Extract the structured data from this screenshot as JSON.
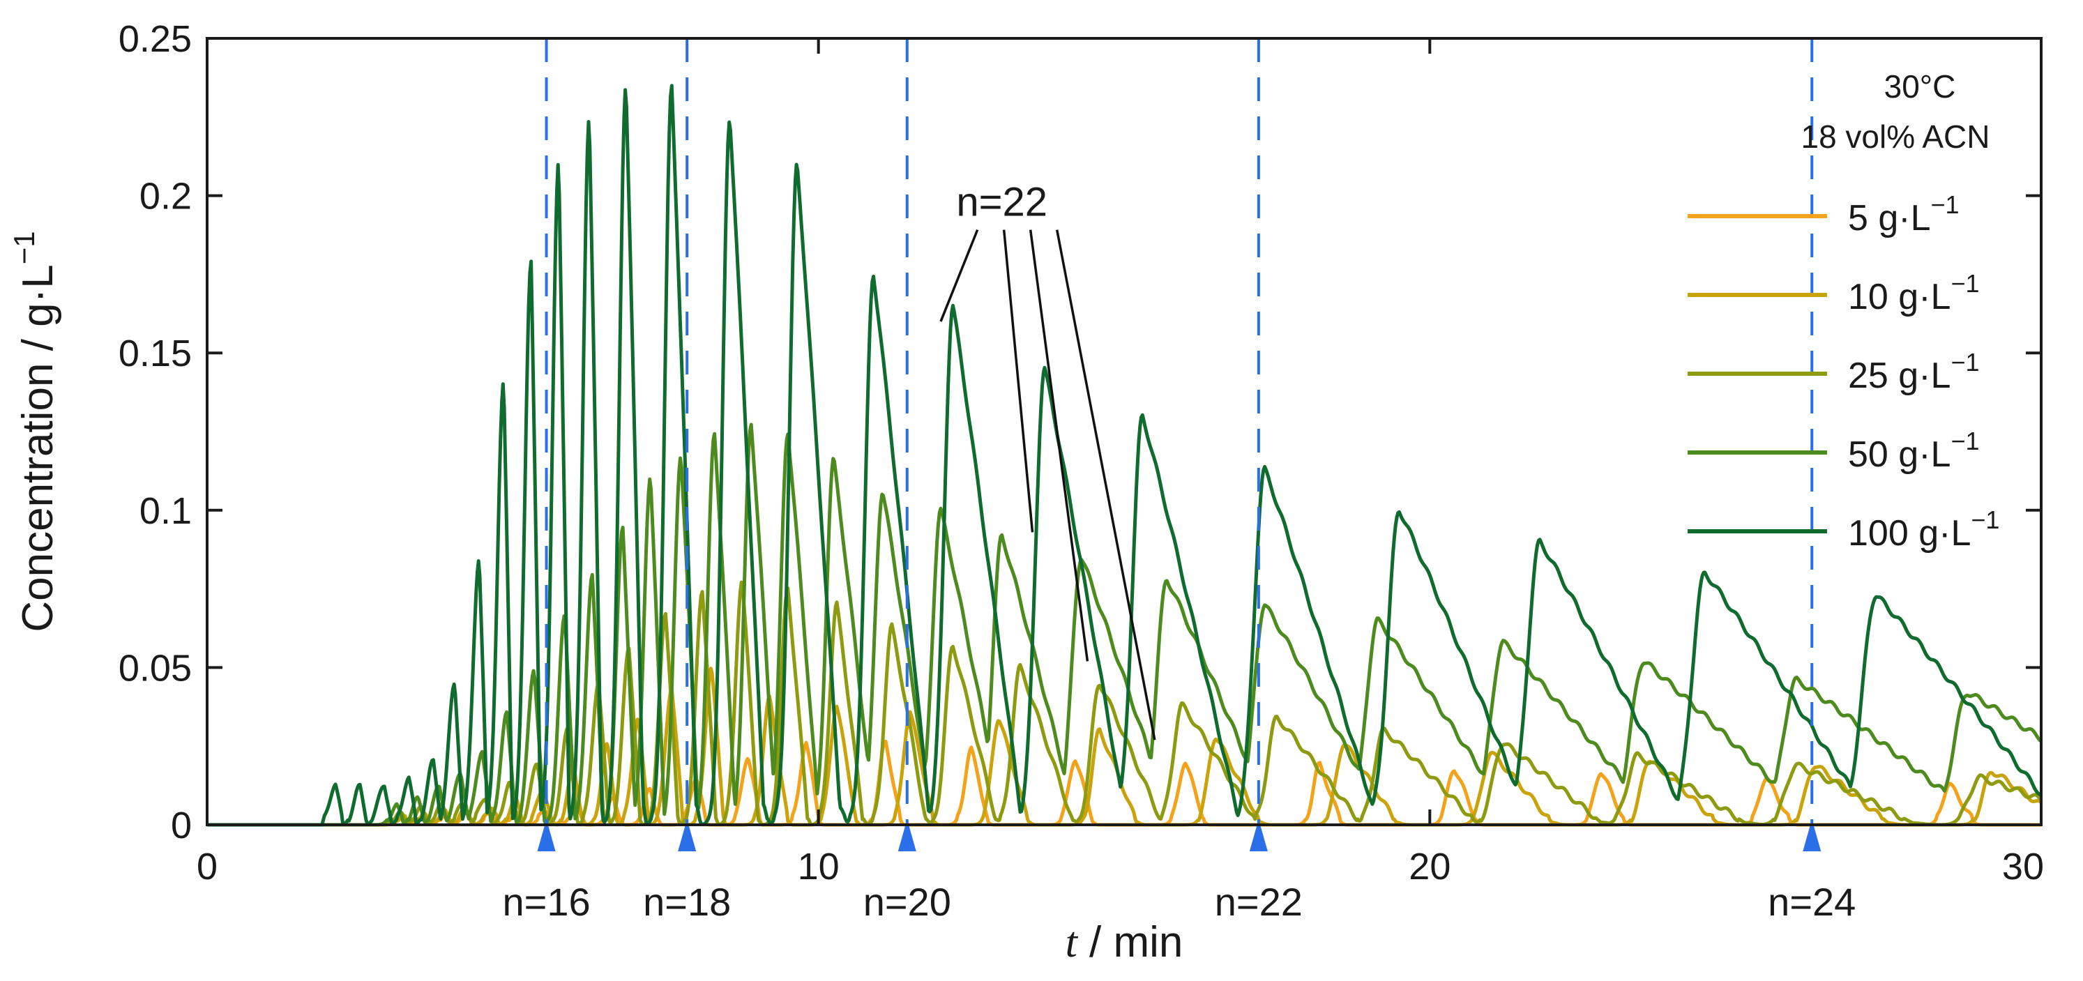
{
  "chart_data": {
    "type": "line",
    "title": "",
    "xlabel_var": "t",
    "xlabel_unit": " / min",
    "ylabel": "Concentration / g·L",
    "ylabel_sup": "−1",
    "xlim": [
      0,
      30
    ],
    "ylim": [
      0,
      0.25
    ],
    "xticks": [
      0,
      10,
      20,
      30
    ],
    "xtick_labels": [
      "0",
      "10",
      "20",
      "30"
    ],
    "yticks": [
      0,
      0.05,
      0.1,
      0.15,
      0.2,
      0.25
    ],
    "ytick_labels": [
      "0",
      "0.05",
      "0.1",
      "0.15",
      "0.2",
      "0.25"
    ],
    "grid": false,
    "legend_position": "top-right",
    "conditions": [
      "30°C",
      "18 vol% ACN"
    ],
    "series": [
      {
        "name": "5 g·L",
        "legend_value": "5 g·L",
        "color": "#F2A31B",
        "peaks": [
          [
            3.2,
            0.002,
            0.12
          ],
          [
            3.55,
            0.002,
            0.12
          ],
          [
            3.9,
            0.003,
            0.12
          ],
          [
            4.25,
            0.003,
            0.13
          ],
          [
            4.65,
            0.004,
            0.13
          ],
          [
            5.05,
            0.004,
            0.13
          ],
          [
            5.55,
            0.005,
            0.14
          ],
          [
            6.05,
            0.006,
            0.14
          ],
          [
            6.65,
            0.008,
            0.15
          ],
          [
            7.25,
            0.011,
            0.16
          ],
          [
            8.0,
            0.015,
            0.17
          ],
          [
            8.85,
            0.022,
            0.2
          ],
          [
            9.8,
            0.026,
            0.22
          ],
          [
            11.1,
            0.026,
            0.25
          ],
          [
            12.5,
            0.024,
            0.28
          ],
          [
            14.2,
            0.021,
            0.3
          ],
          [
            16.0,
            0.02,
            0.32
          ],
          [
            18.2,
            0.019,
            0.35
          ],
          [
            20.4,
            0.018,
            0.38
          ],
          [
            22.8,
            0.017,
            0.4
          ],
          [
            25.5,
            0.015,
            0.42
          ],
          [
            28.5,
            0.013,
            0.42
          ]
        ]
      },
      {
        "name": "10 g·L",
        "legend_value": "10 g·L",
        "color": "#C9A30C",
        "peaks": [
          [
            3.2,
            0.003,
            0.12
          ],
          [
            3.55,
            0.003,
            0.12
          ],
          [
            3.9,
            0.004,
            0.12
          ],
          [
            4.25,
            0.005,
            0.13
          ],
          [
            4.65,
            0.006,
            0.13
          ],
          [
            5.05,
            0.008,
            0.13
          ],
          [
            5.5,
            0.012,
            0.14
          ],
          [
            6.0,
            0.018,
            0.15
          ],
          [
            6.55,
            0.025,
            0.16
          ],
          [
            7.05,
            0.034,
            0.17
          ],
          [
            7.6,
            0.044,
            0.18
          ],
          [
            8.25,
            0.05,
            0.2
          ],
          [
            9.2,
            0.04,
            0.3
          ],
          [
            10.3,
            0.038,
            0.32
          ],
          [
            11.5,
            0.036,
            0.38
          ],
          [
            12.95,
            0.034,
            0.48
          ],
          [
            14.6,
            0.03,
            0.6
          ],
          [
            16.5,
            0.028,
            0.72
          ],
          [
            18.6,
            0.026,
            0.85
          ],
          [
            21.0,
            0.023,
            1.0
          ],
          [
            23.6,
            0.021,
            1.1
          ],
          [
            26.3,
            0.019,
            1.2
          ],
          [
            29.2,
            0.017,
            1.2
          ]
        ]
      },
      {
        "name": "25 g·L",
        "legend_value": "25 g·L",
        "color": "#8E9A10",
        "peaks": [
          [
            3.15,
            0.004,
            0.12
          ],
          [
            3.5,
            0.005,
            0.12
          ],
          [
            3.85,
            0.006,
            0.12
          ],
          [
            4.2,
            0.007,
            0.13
          ],
          [
            4.55,
            0.009,
            0.13
          ],
          [
            4.95,
            0.013,
            0.14
          ],
          [
            5.4,
            0.02,
            0.15
          ],
          [
            5.9,
            0.03,
            0.16
          ],
          [
            6.4,
            0.045,
            0.17
          ],
          [
            6.9,
            0.057,
            0.18
          ],
          [
            7.5,
            0.068,
            0.2
          ],
          [
            8.1,
            0.075,
            0.22
          ],
          [
            8.75,
            0.078,
            0.26
          ],
          [
            9.5,
            0.075,
            0.32
          ],
          [
            10.3,
            0.07,
            0.42
          ],
          [
            11.2,
            0.063,
            0.55
          ],
          [
            12.2,
            0.057,
            0.7
          ],
          [
            13.3,
            0.05,
            0.85
          ],
          [
            14.6,
            0.045,
            1.0
          ],
          [
            15.95,
            0.038,
            1.2
          ],
          [
            17.5,
            0.034,
            1.35
          ],
          [
            19.25,
            0.03,
            1.5
          ],
          [
            21.2,
            0.026,
            1.6
          ],
          [
            23.4,
            0.022,
            1.75
          ],
          [
            26.0,
            0.019,
            1.9
          ],
          [
            29.0,
            0.015,
            2.0
          ]
        ]
      },
      {
        "name": "50 g·L",
        "legend_value": "50 g·L",
        "color": "#4E8B1F",
        "peaks": [
          [
            3.1,
            0.006,
            0.12
          ],
          [
            3.45,
            0.008,
            0.12
          ],
          [
            3.8,
            0.012,
            0.13
          ],
          [
            4.15,
            0.017,
            0.13
          ],
          [
            4.5,
            0.024,
            0.14
          ],
          [
            4.9,
            0.035,
            0.15
          ],
          [
            5.35,
            0.05,
            0.16
          ],
          [
            5.85,
            0.066,
            0.17
          ],
          [
            6.3,
            0.08,
            0.18
          ],
          [
            6.8,
            0.095,
            0.2
          ],
          [
            7.25,
            0.11,
            0.23
          ],
          [
            7.75,
            0.118,
            0.28
          ],
          [
            8.3,
            0.125,
            0.34
          ],
          [
            8.9,
            0.128,
            0.4
          ],
          [
            9.5,
            0.125,
            0.5
          ],
          [
            10.25,
            0.116,
            0.65
          ],
          [
            11.05,
            0.106,
            0.8
          ],
          [
            12.0,
            0.1,
            1.0
          ],
          [
            13.0,
            0.092,
            1.2
          ],
          [
            14.3,
            0.085,
            1.45
          ],
          [
            15.7,
            0.078,
            1.7
          ],
          [
            17.3,
            0.07,
            1.95
          ],
          [
            19.15,
            0.065,
            2.2
          ],
          [
            21.2,
            0.058,
            2.5
          ],
          [
            23.5,
            0.052,
            2.75
          ],
          [
            26.0,
            0.046,
            3.0
          ],
          [
            28.8,
            0.042,
            3.2
          ]
        ]
      },
      {
        "name": "100 g·L",
        "legend_value": "100 g·L",
        "color": "#0F6B2E",
        "peaks": [
          [
            2.1,
            0.013,
            0.12
          ],
          [
            2.5,
            0.012,
            0.12
          ],
          [
            2.9,
            0.013,
            0.12
          ],
          [
            3.3,
            0.015,
            0.12
          ],
          [
            3.7,
            0.02,
            0.13
          ],
          [
            4.05,
            0.045,
            0.13
          ],
          [
            4.45,
            0.085,
            0.13
          ],
          [
            4.85,
            0.14,
            0.14
          ],
          [
            5.3,
            0.18,
            0.15
          ],
          [
            5.75,
            0.21,
            0.17
          ],
          [
            6.25,
            0.225,
            0.2
          ],
          [
            6.85,
            0.235,
            0.28
          ],
          [
            7.6,
            0.235,
            0.4
          ],
          [
            8.55,
            0.225,
            0.55
          ],
          [
            9.65,
            0.21,
            0.7
          ],
          [
            10.9,
            0.175,
            0.9
          ],
          [
            12.2,
            0.165,
            1.1
          ],
          [
            13.7,
            0.145,
            1.3
          ],
          [
            15.3,
            0.13,
            1.55
          ],
          [
            17.3,
            0.113,
            1.8
          ],
          [
            19.5,
            0.1,
            2.1
          ],
          [
            21.8,
            0.09,
            2.4
          ],
          [
            24.5,
            0.08,
            2.7
          ],
          [
            27.3,
            0.073,
            3.0
          ]
        ]
      }
    ],
    "markers": [
      {
        "n": 16,
        "label": "n=16",
        "x": 5.55
      },
      {
        "n": 18,
        "label": "n=18",
        "x": 7.85
      },
      {
        "n": 20,
        "label": "n=20",
        "x": 11.45
      },
      {
        "n": 22,
        "label": "n=22",
        "x": 17.2
      },
      {
        "n": 24,
        "label": "n=24",
        "x": 26.25
      }
    ],
    "annotation": {
      "label": "n=22",
      "anchor": [
        13.0,
        0.198
      ],
      "targets": [
        [
          12.0,
          0.16
        ],
        [
          13.5,
          0.093
        ],
        [
          14.4,
          0.052
        ],
        [
          15.5,
          0.027
        ]
      ]
    }
  }
}
